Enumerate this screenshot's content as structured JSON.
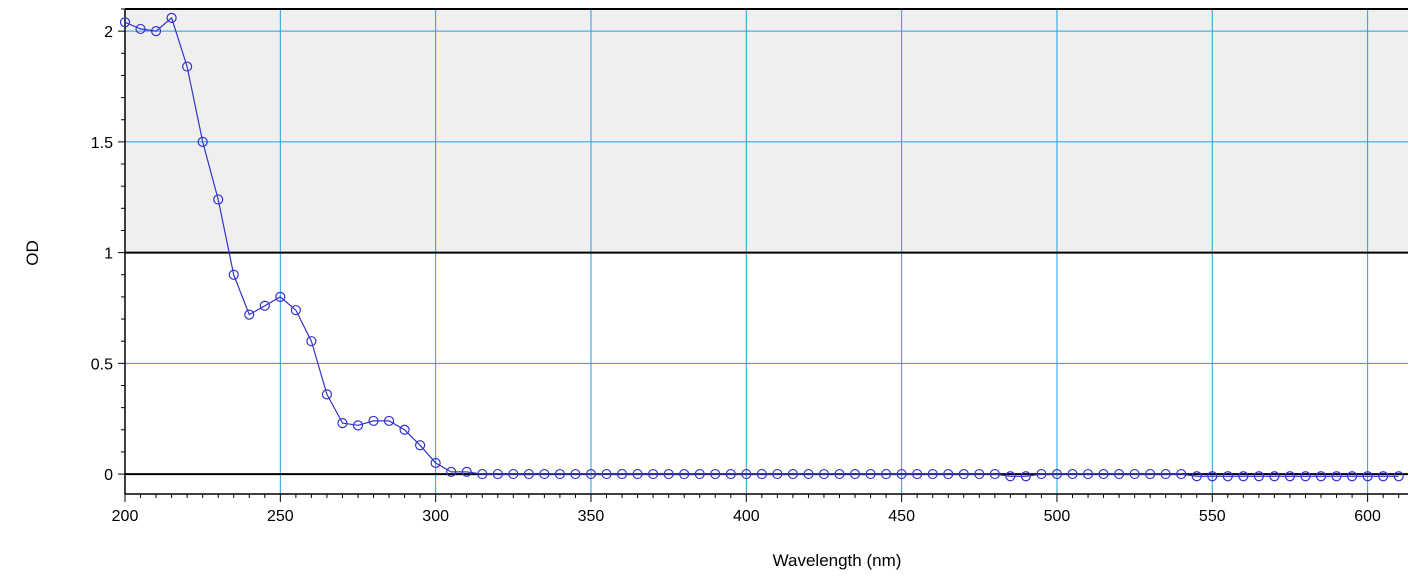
{
  "chart_data": {
    "type": "scatter",
    "title": "",
    "xlabel": "Wavelength (nm)",
    "ylabel": "OD",
    "xlim": [
      200,
      613
    ],
    "ylim": [
      -0.09,
      2.1
    ],
    "xticks": [
      200,
      250,
      300,
      350,
      400,
      450,
      500,
      550,
      600
    ],
    "xtick_labels": [
      "200",
      "250",
      "300",
      "350",
      "400",
      "450",
      "500",
      "550",
      "600"
    ],
    "yticks": [
      0,
      0.5,
      1,
      1.5,
      2
    ],
    "ytick_labels": [
      "0",
      "0.5",
      "1",
      "1.5",
      "2"
    ],
    "grid": true,
    "shaded_band": [
      1,
      2.1
    ],
    "colors": {
      "series": "#3333cc",
      "grid": "#1ea0e0",
      "band": "#efefef",
      "frame": "#000000"
    },
    "series": [
      {
        "x": [
          200,
          205,
          210,
          215,
          220,
          225,
          230,
          235,
          240,
          245,
          250,
          255,
          260,
          265,
          270,
          275,
          280,
          285,
          290,
          295,
          300,
          305,
          310,
          315,
          320,
          325,
          330,
          335,
          340,
          345,
          350,
          355,
          360,
          365,
          370,
          375,
          380,
          385,
          390,
          395,
          400,
          405,
          410,
          415,
          420,
          425,
          430,
          435,
          440,
          445,
          450,
          455,
          460,
          465,
          470,
          475,
          480,
          485,
          490,
          495,
          500,
          505,
          510,
          515,
          520,
          525,
          530,
          535,
          540,
          545,
          550,
          555,
          560,
          565,
          570,
          575,
          580,
          585,
          590,
          595,
          600,
          605,
          610
        ],
        "y": [
          2.04,
          2.01,
          2.0,
          2.06,
          1.84,
          1.5,
          1.24,
          0.9,
          0.72,
          0.76,
          0.8,
          0.74,
          0.6,
          0.36,
          0.23,
          0.22,
          0.24,
          0.24,
          0.2,
          0.13,
          0.05,
          0.01,
          0.01,
          0.0,
          0.0,
          0.0,
          0.0,
          0.0,
          0.0,
          0.0,
          0.0,
          0.0,
          0.0,
          0.0,
          0.0,
          0.0,
          0.0,
          0.0,
          0.0,
          0.0,
          0.0,
          0.0,
          0.0,
          0.0,
          0.0,
          0.0,
          0.0,
          0.0,
          0.0,
          0.0,
          0.0,
          0.0,
          0.0,
          0.0,
          0.0,
          0.0,
          0.0,
          -0.01,
          -0.01,
          0.0,
          0.0,
          0.0,
          0.0,
          0.0,
          0.0,
          0.0,
          0.0,
          0.0,
          0.0,
          -0.01,
          -0.01,
          -0.01,
          -0.01,
          -0.01,
          -0.01,
          -0.01,
          -0.01,
          -0.01,
          -0.01,
          -0.01,
          -0.01,
          -0.01,
          -0.01
        ]
      }
    ]
  }
}
